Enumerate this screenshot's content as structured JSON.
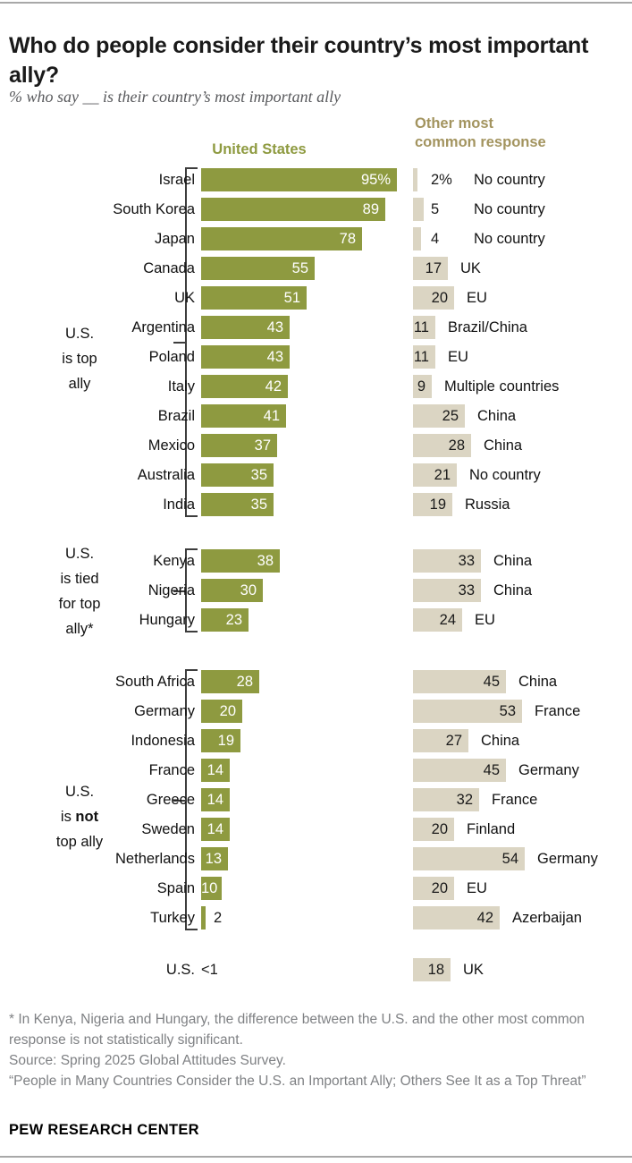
{
  "header": {
    "title": "Who do people consider their country’s most important ally?",
    "subtitle": "% who say __ is their country’s most important ally",
    "col_us": "United States",
    "col_other_line1": "Other most",
    "col_other_line2": "common response"
  },
  "colors": {
    "us_bar_green": "#8e9a40",
    "other_bar_tan": "#dbd5c3",
    "other_header_tan": "#a3945f",
    "footnote_gray": "#7f8184"
  },
  "footer": {
    "footnote": "* In Kenya, Nigeria and Hungary, the difference between the U.S. and the other most common response is not statistically significant.",
    "source": "Source: Spring 2025 Global Attitudes Survey.",
    "report": "“People in Many Countries Consider the U.S. an Important Ally; Others See It as a Top Threat”",
    "brand": "PEW RESEARCH CENTER"
  },
  "chart_data": {
    "type": "bar",
    "title": "Who do people consider their country’s most important ally?",
    "subtitle": "% who say __ is their country’s most important ally",
    "unit": "percent of respondents",
    "series_labels": [
      "United States",
      "Other most common response"
    ],
    "xlim": [
      0,
      100
    ],
    "groups": [
      {
        "label_lines": [
          "U.S.",
          "is top",
          "ally"
        ],
        "bracket": true,
        "rows": [
          {
            "country": "Israel",
            "us": 95,
            "us_display": "95%",
            "other": 2,
            "other_display": "2%",
            "other_response": "No country"
          },
          {
            "country": "South Korea",
            "us": 89,
            "us_display": "89",
            "other": 5,
            "other_display": "5",
            "other_response": "No country"
          },
          {
            "country": "Japan",
            "us": 78,
            "us_display": "78",
            "other": 4,
            "other_display": "4",
            "other_response": "No country"
          },
          {
            "country": "Canada",
            "us": 55,
            "us_display": "55",
            "other": 17,
            "other_display": "17",
            "other_response": "UK"
          },
          {
            "country": "UK",
            "us": 51,
            "us_display": "51",
            "other": 20,
            "other_display": "20",
            "other_response": "EU"
          },
          {
            "country": "Argentina",
            "us": 43,
            "us_display": "43",
            "other": 11,
            "other_display": "11",
            "other_response": "Brazil/China"
          },
          {
            "country": "Poland",
            "us": 43,
            "us_display": "43",
            "other": 11,
            "other_display": "11",
            "other_response": "EU"
          },
          {
            "country": "Italy",
            "us": 42,
            "us_display": "42",
            "other": 9,
            "other_display": "9",
            "other_response": "Multiple countries"
          },
          {
            "country": "Brazil",
            "us": 41,
            "us_display": "41",
            "other": 25,
            "other_display": "25",
            "other_response": "China"
          },
          {
            "country": "Mexico",
            "us": 37,
            "us_display": "37",
            "other": 28,
            "other_display": "28",
            "other_response": "China"
          },
          {
            "country": "Australia",
            "us": 35,
            "us_display": "35",
            "other": 21,
            "other_display": "21",
            "other_response": "No country"
          },
          {
            "country": "India",
            "us": 35,
            "us_display": "35",
            "other": 19,
            "other_display": "19",
            "other_response": "Russia"
          }
        ]
      },
      {
        "label_lines": [
          "U.S.",
          "is tied",
          "for top",
          "ally*"
        ],
        "bracket": true,
        "rows": [
          {
            "country": "Kenya",
            "us": 38,
            "us_display": "38",
            "other": 33,
            "other_display": "33",
            "other_response": "China"
          },
          {
            "country": "Nigeria",
            "us": 30,
            "us_display": "30",
            "other": 33,
            "other_display": "33",
            "other_response": "China"
          },
          {
            "country": "Hungary",
            "us": 23,
            "us_display": "23",
            "other": 24,
            "other_display": "24",
            "other_response": "EU"
          }
        ]
      },
      {
        "label_lines": [
          "U.S.",
          "is **not**",
          "top ally"
        ],
        "bracket": true,
        "rows": [
          {
            "country": "South Africa",
            "us": 28,
            "us_display": "28",
            "other": 45,
            "other_display": "45",
            "other_response": "China"
          },
          {
            "country": "Germany",
            "us": 20,
            "us_display": "20",
            "other": 53,
            "other_display": "53",
            "other_response": "France"
          },
          {
            "country": "Indonesia",
            "us": 19,
            "us_display": "19",
            "other": 27,
            "other_display": "27",
            "other_response": "China"
          },
          {
            "country": "France",
            "us": 14,
            "us_display": "14",
            "other": 45,
            "other_display": "45",
            "other_response": "Germany"
          },
          {
            "country": "Greece",
            "us": 14,
            "us_display": "14",
            "other": 32,
            "other_display": "32",
            "other_response": "France"
          },
          {
            "country": "Sweden",
            "us": 14,
            "us_display": "14",
            "other": 20,
            "other_display": "20",
            "other_response": "Finland"
          },
          {
            "country": "Netherlands",
            "us": 13,
            "us_display": "13",
            "other": 54,
            "other_display": "54",
            "other_response": "Germany"
          },
          {
            "country": "Spain",
            "us": 10,
            "us_display": "10",
            "other": 20,
            "other_display": "20",
            "other_response": "EU"
          },
          {
            "country": "Turkey",
            "us": 2,
            "us_display": "2",
            "other": 42,
            "other_display": "42",
            "other_response": "Azerbaijan"
          }
        ]
      },
      {
        "label_lines": [],
        "bracket": false,
        "rows": [
          {
            "country": "U.S.",
            "us": null,
            "us_display": "<1",
            "other": 18,
            "other_display": "18",
            "other_response": "UK"
          }
        ]
      }
    ]
  }
}
